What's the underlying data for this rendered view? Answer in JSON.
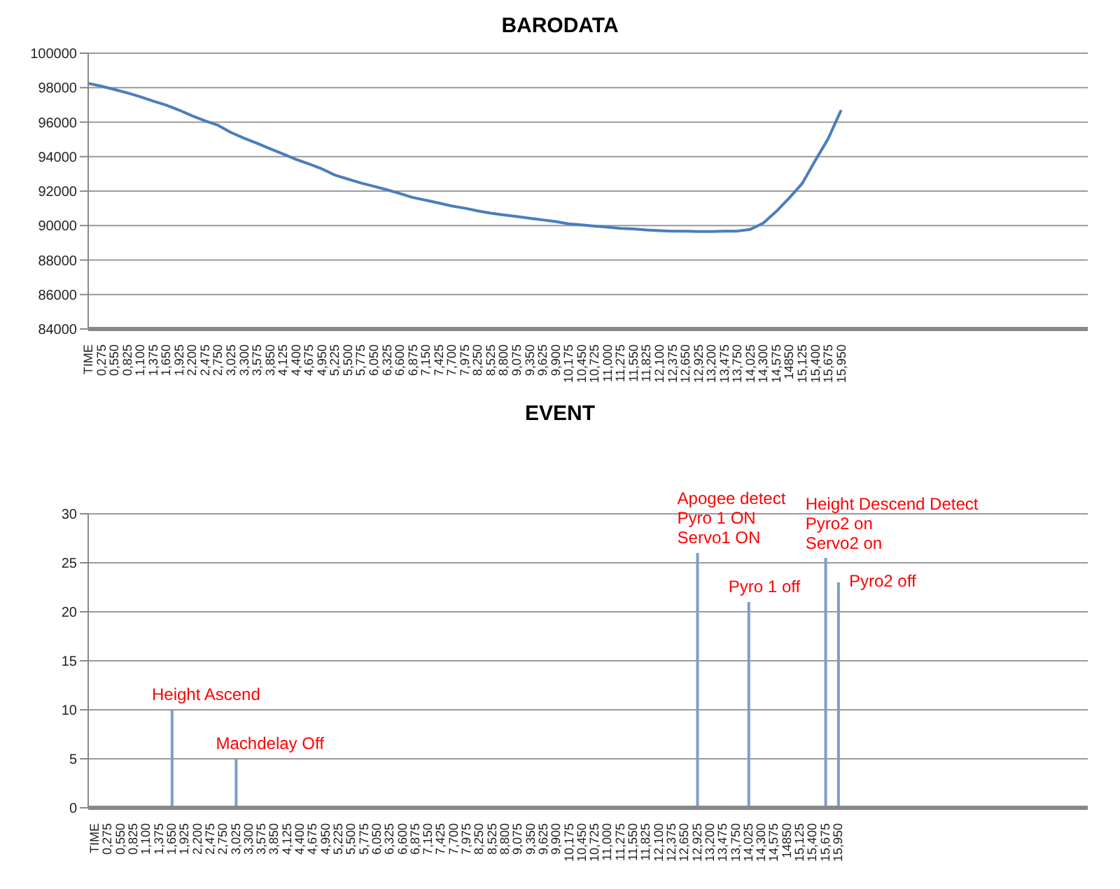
{
  "chart_data": [
    {
      "type": "line",
      "title": "BARODATA",
      "color": "#4a7ebb",
      "ylim": [
        84000,
        100000
      ],
      "yticks": [
        84000,
        86000,
        88000,
        90000,
        92000,
        94000,
        96000,
        98000,
        100000
      ],
      "grid": "y",
      "categories": [
        "TIME",
        "0,275",
        "0,550",
        "0,825",
        "1,100",
        "1,375",
        "1,650",
        "1,925",
        "2,200",
        "2,475",
        "2,750",
        "3,025",
        "3,300",
        "3,575",
        "3,850",
        "4,125",
        "4,400",
        "4,675",
        "4,950",
        "5,225",
        "5,500",
        "5,775",
        "6,050",
        "6,325",
        "6,600",
        "6,875",
        "7,150",
        "7,425",
        "7,700",
        "7,975",
        "8,250",
        "8,525",
        "8,800",
        "9,075",
        "9,350",
        "9,625",
        "9,900",
        "10,175",
        "10,450",
        "10,725",
        "11,000",
        "11,275",
        "11,550",
        "11,825",
        "12,100",
        "12,375",
        "12,650",
        "12,925",
        "13,200",
        "13,475",
        "13,750",
        "14,025",
        "14,300",
        "14,575",
        "14850",
        "15,125",
        "15,400",
        "15,675",
        "15,950",
        null,
        null,
        null,
        null,
        null,
        null,
        null,
        null,
        null,
        null,
        null,
        null,
        null,
        null,
        null,
        null,
        null,
        null,
        null
      ],
      "values": [
        98250,
        98090,
        97900,
        97700,
        97480,
        97220,
        96990,
        96700,
        96370,
        96080,
        95820,
        95400,
        95070,
        94780,
        94460,
        94160,
        93840,
        93580,
        93290,
        92930,
        92700,
        92470,
        92280,
        92080,
        91860,
        91630,
        91470,
        91310,
        91140,
        91010,
        90850,
        90720,
        90620,
        90530,
        90430,
        90330,
        90230,
        90100,
        90040,
        89970,
        89910,
        89840,
        89810,
        89750,
        89710,
        89680,
        89680,
        89650,
        89650,
        89680,
        89680,
        89780,
        90140,
        90820,
        91600,
        92440,
        93770,
        95040,
        96700,
        null,
        null,
        null,
        null,
        null,
        null,
        null,
        null,
        null,
        null,
        null,
        null,
        null,
        null,
        null,
        null,
        null,
        null,
        null
      ]
    },
    {
      "type": "bar",
      "title": "EVENT",
      "color": "#7f9ccc",
      "ylim": [
        0,
        30
      ],
      "yticks": [
        0,
        5,
        10,
        15,
        20,
        25,
        30
      ],
      "grid": "y",
      "categories": [
        "TIME",
        "0,275",
        "0,550",
        "0,825",
        "1,100",
        "1,375",
        "1,650",
        "1,925",
        "2,200",
        "2,475",
        "2,750",
        "3,025",
        "3,300",
        "3,575",
        "3,850",
        "4,125",
        "4,400",
        "4,675",
        "4,950",
        "5,225",
        "5,500",
        "5,775",
        "6,050",
        "6,325",
        "6,600",
        "6,875",
        "7,150",
        "7,425",
        "7,700",
        "7,975",
        "8,250",
        "8,525",
        "8,800",
        "9,075",
        "9,350",
        "9,625",
        "9,900",
        "10,175",
        "10,450",
        "10,725",
        "11,000",
        "11,275",
        "11,550",
        "11,825",
        "12,100",
        "12,375",
        "12,650",
        "12,925",
        "13,200",
        "13,475",
        "13,750",
        "14,025",
        "14,300",
        "14,575",
        "14850",
        "15,125",
        "15,400",
        "15,675",
        "15,950",
        null,
        null,
        null,
        null,
        null,
        null,
        null,
        null,
        null,
        null,
        null,
        null,
        null,
        null,
        null,
        null,
        null,
        null,
        null
      ],
      "values": [
        null,
        null,
        null,
        null,
        null,
        null,
        10,
        null,
        null,
        null,
        null,
        5,
        null,
        null,
        null,
        null,
        null,
        null,
        null,
        null,
        null,
        null,
        null,
        null,
        null,
        null,
        null,
        null,
        null,
        null,
        null,
        null,
        null,
        null,
        null,
        null,
        null,
        null,
        null,
        null,
        null,
        null,
        null,
        null,
        null,
        null,
        null,
        26,
        null,
        null,
        null,
        21,
        null,
        null,
        null,
        null,
        null,
        25.5,
        23,
        null,
        null,
        null,
        null,
        null,
        null,
        null,
        null,
        null,
        null,
        null,
        null,
        null,
        null,
        null,
        null,
        null,
        null,
        null
      ],
      "annotations": [
        {
          "text": "Height Ascend",
          "x": "1,650",
          "y": 10
        },
        {
          "text": "Machdelay Off",
          "x": "3,025",
          "y": 5
        },
        {
          "text": "Apogee detect\nPyro 1 ON\nServo1 ON",
          "x": "12,925",
          "y": 26
        },
        {
          "text": "Pyro 1 off",
          "x": "14,025",
          "y": 21
        },
        {
          "text": "Height Descend Detect\nPyro2 on\nServo2 on",
          "x": "15,675",
          "y": 25.5
        },
        {
          "text": "Pyro2 off",
          "x": "15,950",
          "y": 23
        }
      ]
    }
  ]
}
